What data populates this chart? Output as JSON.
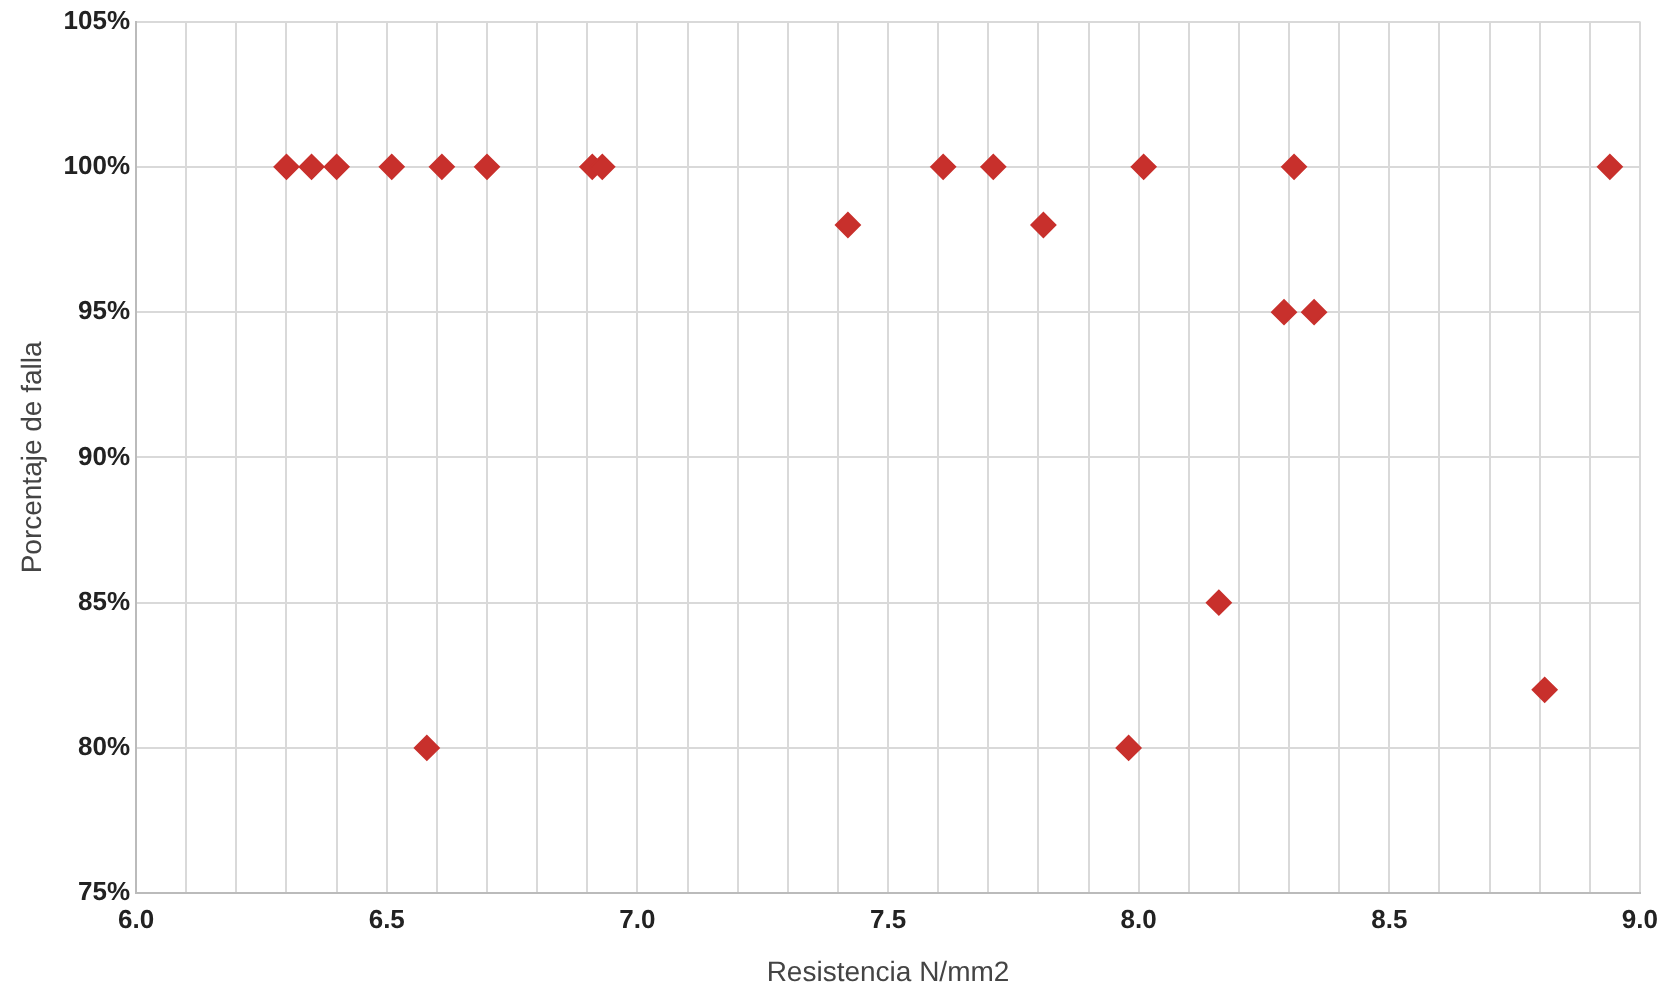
{
  "chart_data": {
    "type": "scatter",
    "xlabel": "Resistencia N/mm2",
    "ylabel": "Porcentaje de falla",
    "x": [
      6.3,
      6.35,
      6.4,
      6.51,
      6.61,
      6.7,
      6.91,
      6.93,
      7.42,
      7.61,
      7.71,
      7.81,
      8.01,
      8.31,
      8.29,
      8.35,
      8.94,
      6.58,
      7.98,
      8.16,
      8.81
    ],
    "series": [
      {
        "color": "#c8302c",
        "values": [
          100,
          100,
          100,
          100,
          100,
          100,
          100,
          100,
          98,
          100,
          100,
          98,
          100,
          100,
          95,
          95,
          100,
          80,
          80,
          85,
          82
        ]
      }
    ],
    "xlim": [
      6.0,
      9.0
    ],
    "xticks": [
      {
        "value": 6.0,
        "label": "6.0"
      },
      {
        "value": 6.1,
        "label": null
      },
      {
        "value": 6.2,
        "label": null
      },
      {
        "value": 6.3,
        "label": null
      },
      {
        "value": 6.4,
        "label": null
      },
      {
        "value": 6.5,
        "label": "6.5"
      },
      {
        "value": 6.6,
        "label": null
      },
      {
        "value": 6.7,
        "label": null
      },
      {
        "value": 6.8,
        "label": null
      },
      {
        "value": 6.9,
        "label": null
      },
      {
        "value": 7.0,
        "label": "7.0"
      },
      {
        "value": 7.1,
        "label": null
      },
      {
        "value": 7.2,
        "label": null
      },
      {
        "value": 7.3,
        "label": null
      },
      {
        "value": 7.4,
        "label": null
      },
      {
        "value": 7.5,
        "label": "7.5"
      },
      {
        "value": 7.6,
        "label": null
      },
      {
        "value": 7.7,
        "label": null
      },
      {
        "value": 7.8,
        "label": null
      },
      {
        "value": 7.9,
        "label": null
      },
      {
        "value": 8.0,
        "label": "8.0"
      },
      {
        "value": 8.1,
        "label": null
      },
      {
        "value": 8.2,
        "label": null
      },
      {
        "value": 8.3,
        "label": null
      },
      {
        "value": 8.4,
        "label": null
      },
      {
        "value": 8.5,
        "label": "8.5"
      },
      {
        "value": 8.6,
        "label": null
      },
      {
        "value": 8.7,
        "label": null
      },
      {
        "value": 8.8,
        "label": null
      },
      {
        "value": 8.9,
        "label": null
      },
      {
        "value": 9.0,
        "label": "9.0"
      }
    ],
    "ylim": [
      75,
      105
    ],
    "yticks": [
      {
        "value": 75,
        "label": "75%"
      },
      {
        "value": 80,
        "label": "80%"
      },
      {
        "value": 85,
        "label": "85%"
      },
      {
        "value": 90,
        "label": "90%"
      },
      {
        "value": 95,
        "label": "95%"
      },
      {
        "value": 100,
        "label": "100%"
      },
      {
        "value": 105,
        "label": "105%"
      }
    ],
    "grid": true,
    "marker": "diamond",
    "legend": false
  }
}
